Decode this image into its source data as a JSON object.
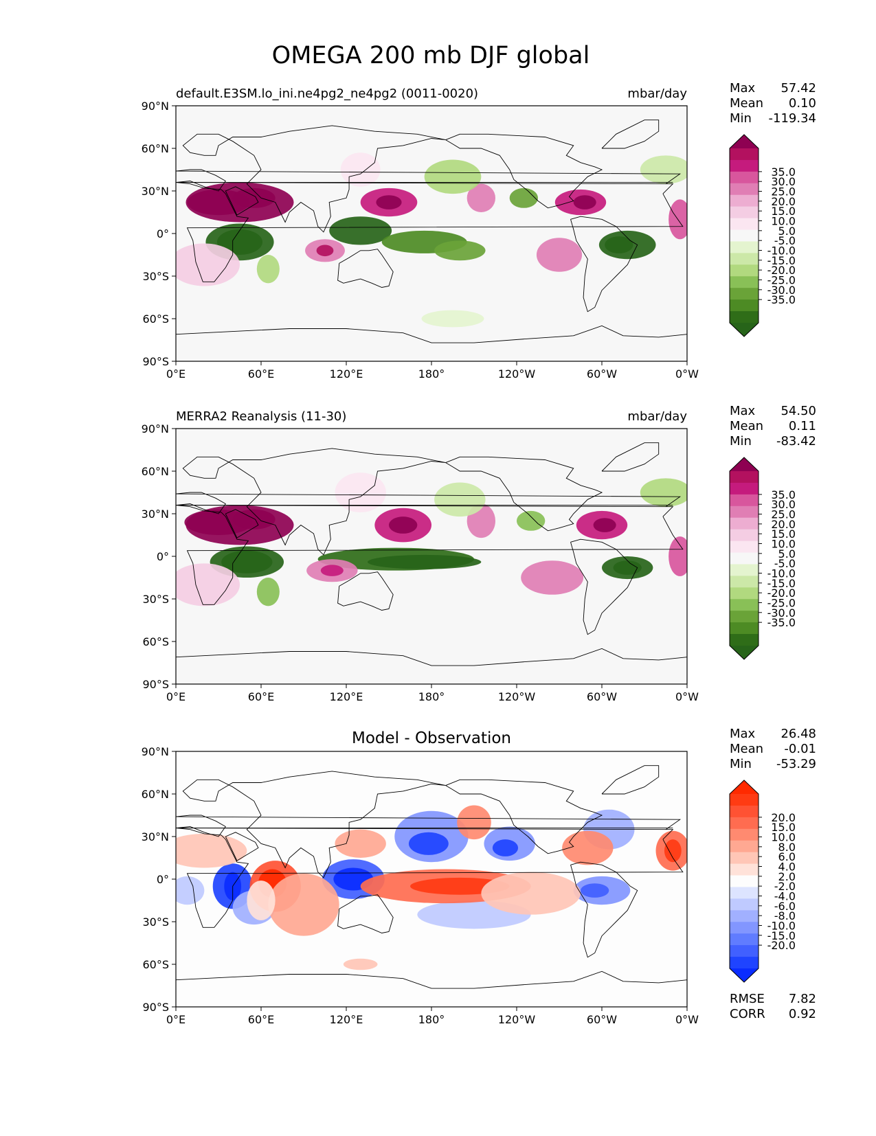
{
  "figure": {
    "title": "OMEGA 200 mb DJF global"
  },
  "chart_data": [
    {
      "type": "heatmap",
      "panel": "model",
      "left_title": "default.E3SM.lo_ini.ne4pg2_ne4pg2 (0011-0020)",
      "right_title": "mbar/day",
      "center_title": "",
      "x_tick_labels": [
        "0°E",
        "60°E",
        "120°E",
        "180°",
        "120°W",
        "60°W",
        "0°W"
      ],
      "y_tick_labels": [
        "90°N",
        "60°N",
        "30°N",
        "0°",
        "30°S",
        "60°S",
        "90°S"
      ],
      "xlim": [
        0,
        360
      ],
      "ylim": [
        -90,
        90
      ],
      "colormap": "PiYG_r",
      "colorbar_levels": [
        "35.0",
        "30.0",
        "25.0",
        "20.0",
        "15.0",
        "10.0",
        "5.0",
        "-5.0",
        "-10.0",
        "-15.0",
        "-20.0",
        "-25.0",
        "-30.0",
        "-35.0"
      ],
      "colorbar_colors": [
        "#8e0152",
        "#b3115f",
        "#c51b7d",
        "#d8569d",
        "#e07eb4",
        "#edadd1",
        "#f4cde3",
        "#fbe6f1",
        "#f7f7f7",
        "#e4f4cf",
        "#cce8a8",
        "#b1d97f",
        "#89c057",
        "#6aa338",
        "#4d8b24",
        "#2f6d18",
        "#276419"
      ],
      "stats": {
        "Max": "57.42",
        "Mean": "0.10",
        "Min": "-119.34"
      },
      "stat_labels": [
        "Max",
        "Mean",
        "Min"
      ]
    },
    {
      "type": "heatmap",
      "panel": "observation",
      "left_title": "MERRA2 Reanalysis (11-30)",
      "right_title": "mbar/day",
      "center_title": "",
      "x_tick_labels": [
        "0°E",
        "60°E",
        "120°E",
        "180°",
        "120°W",
        "60°W",
        "0°W"
      ],
      "y_tick_labels": [
        "90°N",
        "60°N",
        "30°N",
        "0°",
        "30°S",
        "60°S",
        "90°S"
      ],
      "xlim": [
        0,
        360
      ],
      "ylim": [
        -90,
        90
      ],
      "colormap": "PiYG_r",
      "colorbar_levels": [
        "35.0",
        "30.0",
        "25.0",
        "20.0",
        "15.0",
        "10.0",
        "5.0",
        "-5.0",
        "-10.0",
        "-15.0",
        "-20.0",
        "-25.0",
        "-30.0",
        "-35.0"
      ],
      "colorbar_colors": [
        "#8e0152",
        "#b3115f",
        "#c51b7d",
        "#d8569d",
        "#e07eb4",
        "#edadd1",
        "#f4cde3",
        "#fbe6f1",
        "#f7f7f7",
        "#e4f4cf",
        "#cce8a8",
        "#b1d97f",
        "#89c057",
        "#6aa338",
        "#4d8b24",
        "#2f6d18",
        "#276419"
      ],
      "stats": {
        "Max": "54.50",
        "Mean": "0.11",
        "Min": "-83.42"
      },
      "stat_labels": [
        "Max",
        "Mean",
        "Min"
      ]
    },
    {
      "type": "heatmap",
      "panel": "difference",
      "left_title": "",
      "right_title": "",
      "center_title": "Model - Observation",
      "x_tick_labels": [
        "0°E",
        "60°E",
        "120°E",
        "180°",
        "120°W",
        "60°W",
        "0°W"
      ],
      "y_tick_labels": [
        "90°N",
        "60°N",
        "30°N",
        "0°",
        "30°S",
        "60°S",
        "90°S"
      ],
      "xlim": [
        0,
        360
      ],
      "ylim": [
        -90,
        90
      ],
      "colormap": "bwr",
      "colorbar_levels": [
        "20.0",
        "15.0",
        "10.0",
        "8.0",
        "6.0",
        "4.0",
        "2.0",
        "-2.0",
        "-4.0",
        "-6.0",
        "-8.0",
        "-10.0",
        "-15.0",
        "-20.0"
      ],
      "colorbar_colors": [
        "#ff2a00",
        "#ff3b13",
        "#ff5233",
        "#ff6c50",
        "#ff8a70",
        "#ffa892",
        "#ffc6b6",
        "#ffe2d9",
        "#fdfdfd",
        "#dde4ff",
        "#bfcaff",
        "#a1b0ff",
        "#8296ff",
        "#607cff",
        "#4160ff",
        "#1f44ff",
        "#0a2cff"
      ],
      "stats": {
        "Max": "26.48",
        "Mean": "-0.01",
        "Min": "-53.29"
      },
      "stat_labels": [
        "Max",
        "Mean",
        "Min"
      ],
      "metrics": {
        "RMSE": "7.82",
        "CORR": "0.92"
      },
      "metric_labels": [
        "RMSE",
        "CORR"
      ]
    }
  ]
}
